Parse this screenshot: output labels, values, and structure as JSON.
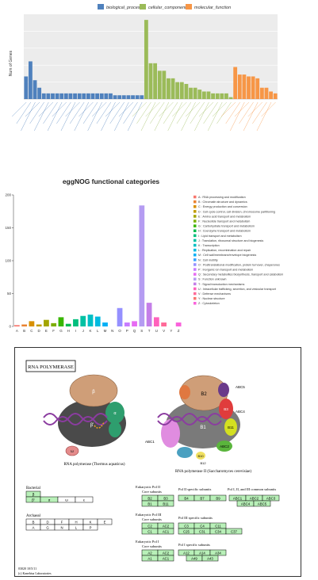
{
  "chart_data": [
    {
      "type": "bar",
      "ylabel": "Num of Genes",
      "legend_position": "top",
      "series": [
        {
          "name": "biological_process",
          "color": "#4f81bd",
          "values": [
            12,
            20,
            10,
            6,
            3,
            3,
            3,
            3,
            3,
            3,
            3,
            3,
            3,
            3,
            3,
            3,
            3,
            3,
            3,
            3,
            2,
            2,
            2,
            2,
            2,
            2,
            2
          ]
        },
        {
          "name": "cellular_component",
          "color": "#9bbb59",
          "values": [
            42,
            19,
            19,
            15,
            15,
            11,
            11,
            9,
            9,
            8,
            6,
            6,
            5,
            4,
            4,
            3,
            3,
            3,
            3,
            1
          ]
        },
        {
          "name": "molecular_function",
          "color": "#f79646",
          "values": [
            17,
            13,
            13,
            12,
            12,
            11,
            6,
            6,
            4,
            3
          ]
        }
      ]
    },
    {
      "type": "bar",
      "title": "eggNOG functional categories",
      "ylim": [
        0,
        200
      ],
      "yticks": [
        0,
        50,
        100,
        150,
        200
      ],
      "categories": [
        "A",
        "B",
        "C",
        "D",
        "E",
        "F",
        "G",
        "H",
        "I",
        "J",
        "K",
        "L",
        "M",
        "N",
        "O",
        "P",
        "Q",
        "S",
        "T",
        "U",
        "V",
        "Y",
        "Z"
      ],
      "values": [
        2,
        3,
        8,
        3,
        10,
        5,
        14,
        4,
        11,
        16,
        18,
        15,
        6,
        0,
        28,
        6,
        8,
        184,
        36,
        14,
        6,
        0,
        6
      ],
      "colors": [
        "#f8766d",
        "#ea8331",
        "#d89000",
        "#c09b00",
        "#a3a500",
        "#7cae00",
        "#39b600",
        "#00bb4e",
        "#00bf7d",
        "#00c1a3",
        "#00bfc4",
        "#00bae0",
        "#00b0f6",
        "#35a2ff",
        "#9590ff",
        "#c77cff",
        "#e76bf3",
        "#b59cf2",
        "#c47ee8",
        "#ff62bc",
        "#ff6a98",
        "#f8766d",
        "#fa62db"
      ],
      "legend": [
        "A : RNA processing and modification",
        "B : Chromatin structure and dynamics",
        "C : Energy production and conversion",
        "D : Cell cycle control, cell division, chromosome partitioning",
        "E : Amino acid transport and metabolism",
        "F : Nucleotide transport and metabolism",
        "G : Carbohydrate transport and metabolism",
        "H : Coenzyme transport and metabolism",
        "I : Lipid transport and metabolism",
        "J : Translation, ribosomal structure and biogenesis",
        "K : Transcription",
        "L : Replication, recombination and repair",
        "M : Cell wall/membrane/envelope biogenesis",
        "N : Cell motility",
        "O : Posttranslational modification, protein turnover, chaperones",
        "P : Inorganic ion transport and metabolism",
        "Q : Secondary metabolites biosynthesis, transport and catabolism",
        "S : Function unknown",
        "T : Signal transduction mechanisms",
        "U : Intracellular trafficking, secretion, and vesicular transport",
        "V : Defense mechanisms",
        "Y : Nuclear structure",
        "Z : Cytoskeleton"
      ],
      "legend_position": "right"
    }
  ],
  "kegg": {
    "title": "RNA POLYMERASE",
    "thermus": {
      "caption": "RNA polymerase (Thermus aquaticus)",
      "beta": "β",
      "beta_prime": "β'",
      "omega": "ω",
      "alpha": "α"
    },
    "yeast": {
      "caption": "RNA polymerase II (Saccharomyces cerevisiae)",
      "labels": [
        "B2",
        "B1",
        "ABC5",
        "B3",
        "ABC4",
        "B11",
        "ABC1",
        "ABC2",
        "B10",
        "B12"
      ]
    },
    "bacterial": {
      "label": "Bacterial",
      "row1": [
        "β"
      ],
      "row2": [
        "β'",
        "α",
        "ω",
        "ε"
      ]
    },
    "archaeal": {
      "label": "Archaeal",
      "col0": [
        "B",
        "A"
      ],
      "row1": [
        "D",
        "F",
        "H",
        "K",
        "E"
      ],
      "row2": [
        "G",
        "N",
        "L",
        "P"
      ]
    },
    "pol2": {
      "header1": "Eukaryotic Pol II",
      "header2": "Core subunits",
      "header3": "Pol II specific subunits",
      "header4": "Pol I, II, and III common subunits",
      "core": [
        "B2",
        "B3",
        "B1",
        "B11"
      ],
      "specific": [
        "B4",
        "B7",
        "B9"
      ],
      "common": [
        "ABC1",
        "ABC2",
        "ABC3",
        "ABC4",
        "ABC5"
      ]
    },
    "pol3": {
      "header1": "Eukaryotic Pol III",
      "header2": "Core subunits",
      "header3": "Pol III specific subunits",
      "core": [
        "C2",
        "AC2",
        "C1",
        "AC1"
      ],
      "specific": [
        "C3",
        "C4",
        "C11",
        "C25",
        "C31",
        "C34",
        "C37"
      ]
    },
    "pol1": {
      "header1": "Eukaryotic Pol I",
      "header2": "Core subunits",
      "header3": "Pol I specific subunits",
      "core": [
        "A2",
        "AC2",
        "A1",
        "AC1"
      ],
      "specific": [
        "A12",
        "A14",
        "A34",
        "A49",
        "A43"
      ]
    },
    "footer1": "03020 10/5/11",
    "footer2": "(c) Kanehisa Laboratories"
  }
}
